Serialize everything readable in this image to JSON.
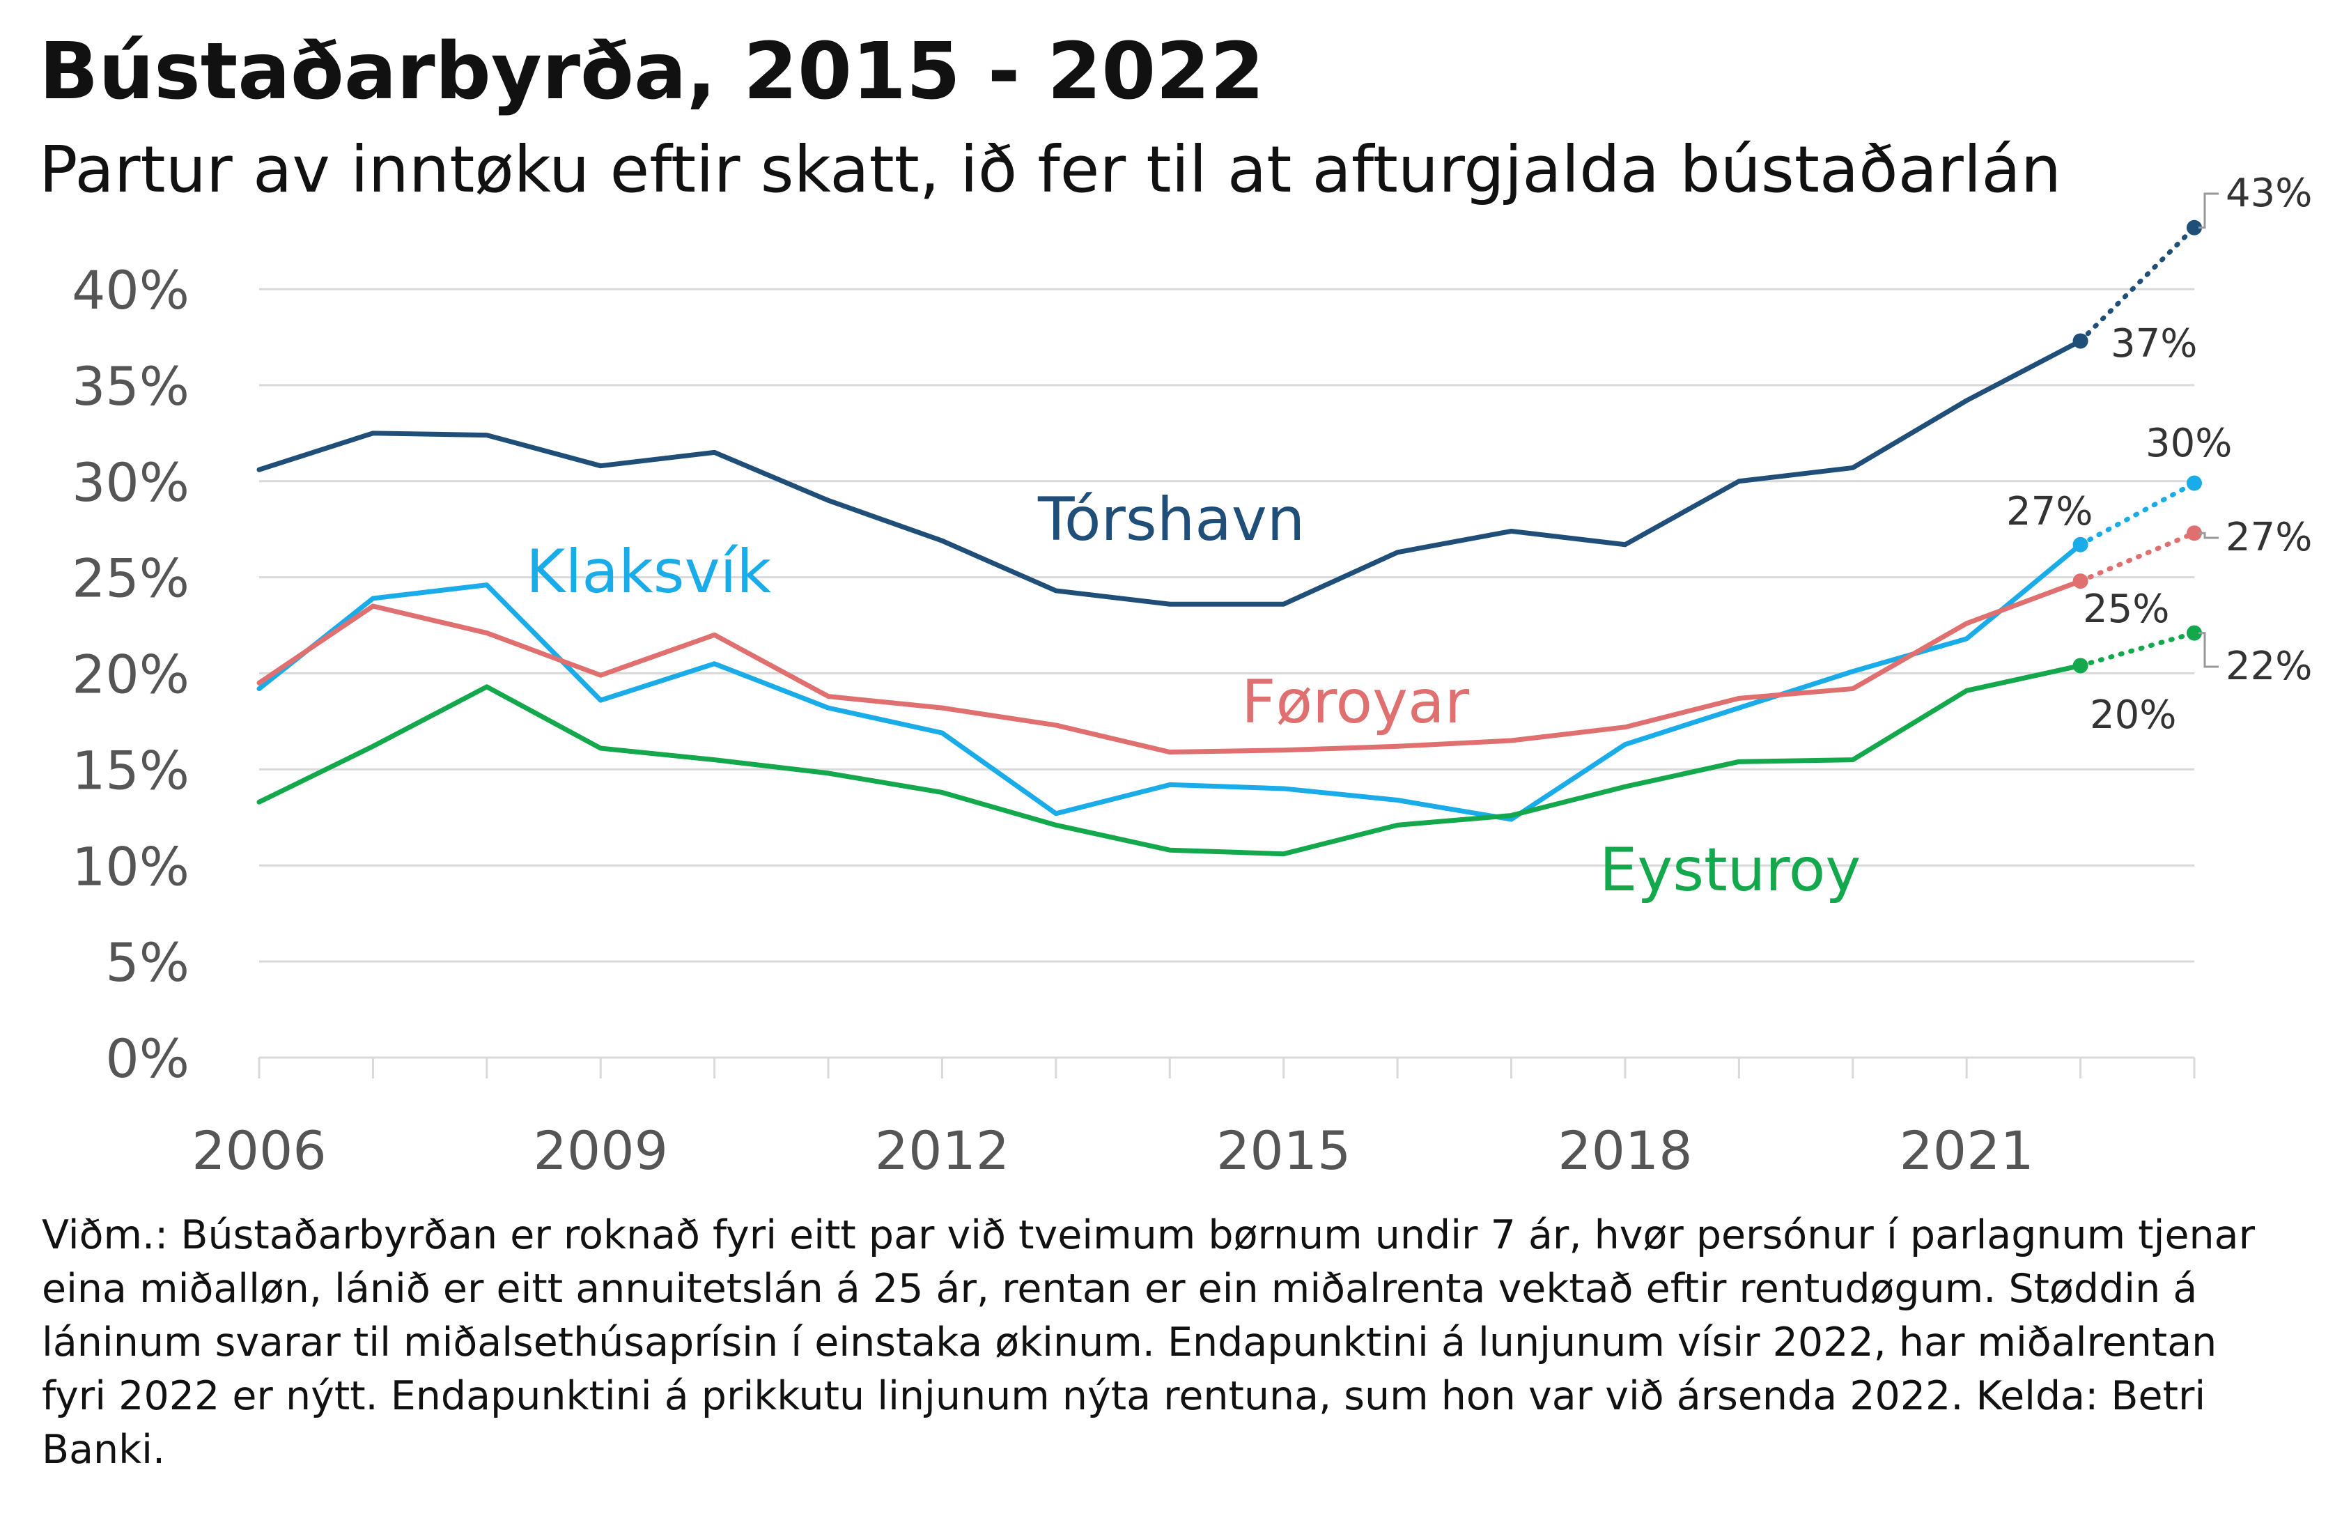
{
  "title": "Bústaðarbyrða, 2015 - 2022",
  "subtitle": "Partur av inntøku eftir skatt, ið fer til at afturgjalda bústaðarlán",
  "note": "Viðm.: Bústaðarbyrðan er roknað fyri eitt par við tveimum børnum undir 7 ár, hvør persónur í parlagnum tjenar eina miðalløn, lánið er eitt annuitetslán á 25 ár, rentan er ein miðalrenta vektað eftir rentudøgum. Støddin á láninum svarar til miðalsethúsaprísin í einstaka økinum. Endapunktini á lunjunum vísir 2022, har miðalrentan fyri 2022 er nýtt. Endapunktini á prikkutu linjunum nýta rentuna, sum hon var við ársenda 2022. Kelda: Betri Banki.",
  "chart_data": {
    "type": "line",
    "title": "Bústaðarbyrða, 2015 - 2022",
    "subtitle": "Partur av inntøku eftir skatt, ið fer til at afturgjalda bústaðarlán",
    "xlabel": "",
    "ylabel": "",
    "x": [
      2006,
      2007,
      2008,
      2009,
      2010,
      2011,
      2012,
      2013,
      2014,
      2015,
      2016,
      2017,
      2018,
      2019,
      2020,
      2021,
      2022
    ],
    "x_ticks": [
      "2006",
      "2009",
      "2012",
      "2015",
      "2018",
      "2021"
    ],
    "x_tick_values": [
      2006,
      2009,
      2012,
      2015,
      2018,
      2021
    ],
    "xlim": [
      2006,
      2023
    ],
    "ylim": [
      0,
      40
    ],
    "y_ticks": [
      "0%",
      "5%",
      "10%",
      "15%",
      "20%",
      "25%",
      "30%",
      "35%",
      "40%"
    ],
    "y_tick_values": [
      0,
      5,
      10,
      15,
      20,
      25,
      30,
      35,
      40
    ],
    "grid": "horizontal",
    "legend": "inline labels",
    "series": [
      {
        "name": "Tórshavn",
        "color": "#1f4e79",
        "values": [
          30.6,
          32.5,
          32.4,
          30.8,
          31.5,
          29.0,
          26.9,
          24.3,
          23.6,
          23.6,
          26.3,
          27.4,
          26.7,
          30.0,
          30.7,
          34.2,
          37.3
        ],
        "end_label": "37%",
        "projection_x": 2023,
        "projection_value": 43.2,
        "projection_label": "43%"
      },
      {
        "name": "Klaksvík",
        "color": "#1aace8",
        "values": [
          19.2,
          23.9,
          24.6,
          18.6,
          20.5,
          18.2,
          16.9,
          12.7,
          14.2,
          14.0,
          13.4,
          12.4,
          16.3,
          18.2,
          20.1,
          21.8,
          26.7
        ],
        "end_label": "27%",
        "projection_x": 2023,
        "projection_value": 29.9,
        "projection_label": "30%"
      },
      {
        "name": "Føroyar",
        "color": "#e07070",
        "values": [
          19.5,
          23.5,
          22.1,
          19.9,
          22.0,
          18.8,
          18.2,
          17.3,
          15.9,
          16.0,
          16.2,
          16.5,
          17.2,
          18.7,
          19.2,
          22.6,
          24.8
        ],
        "end_label": "25%",
        "projection_x": 2023,
        "projection_value": 27.3,
        "projection_label": "27%"
      },
      {
        "name": "Eysturoy",
        "color": "#12a84b",
        "values": [
          13.3,
          16.2,
          19.3,
          16.1,
          15.5,
          14.8,
          13.8,
          12.1,
          10.8,
          10.6,
          12.1,
          12.6,
          14.1,
          15.4,
          15.5,
          19.1,
          20.4
        ],
        "end_label": "20%",
        "projection_x": 2023,
        "projection_value": 22.1,
        "projection_label": "22%"
      }
    ]
  }
}
